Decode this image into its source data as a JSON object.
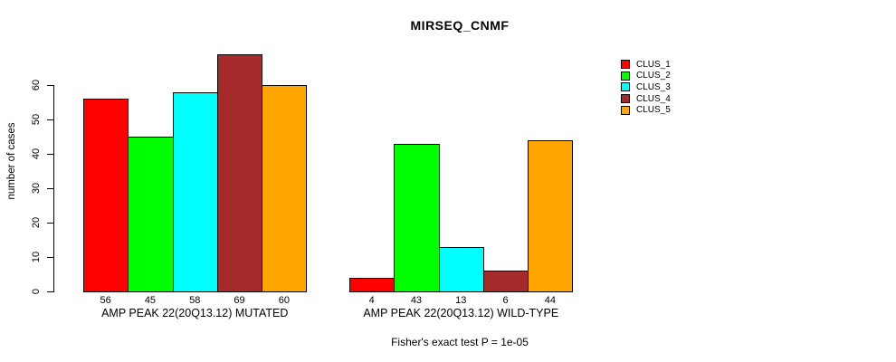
{
  "chart_data": {
    "type": "bar",
    "title": "MIRSEQ_CNMF",
    "ylabel": "number of cases",
    "xlabel": "",
    "ylim": [
      0,
      69
    ],
    "yticks": [
      0,
      10,
      20,
      30,
      40,
      50,
      60
    ],
    "grid": false,
    "legend_position": "right",
    "categories": [
      "AMP PEAK 22(20Q13.12) MUTATED",
      "AMP PEAK 22(20Q13.12) WILD-TYPE"
    ],
    "series": [
      {
        "name": "CLUS_1",
        "color": "#FF0000",
        "values": [
          56,
          4
        ]
      },
      {
        "name": "CLUS_2",
        "color": "#00FF00",
        "values": [
          45,
          43
        ]
      },
      {
        "name": "CLUS_3",
        "color": "#00FFFF",
        "values": [
          58,
          13
        ]
      },
      {
        "name": "CLUS_4",
        "color": "#A52A2A",
        "values": [
          69,
          6
        ]
      },
      {
        "name": "CLUS_5",
        "color": "#FFA500",
        "values": [
          60,
          44
        ]
      }
    ],
    "bar_value_labels": true,
    "annotation": "Fisher's exact test P = 1e-05"
  }
}
